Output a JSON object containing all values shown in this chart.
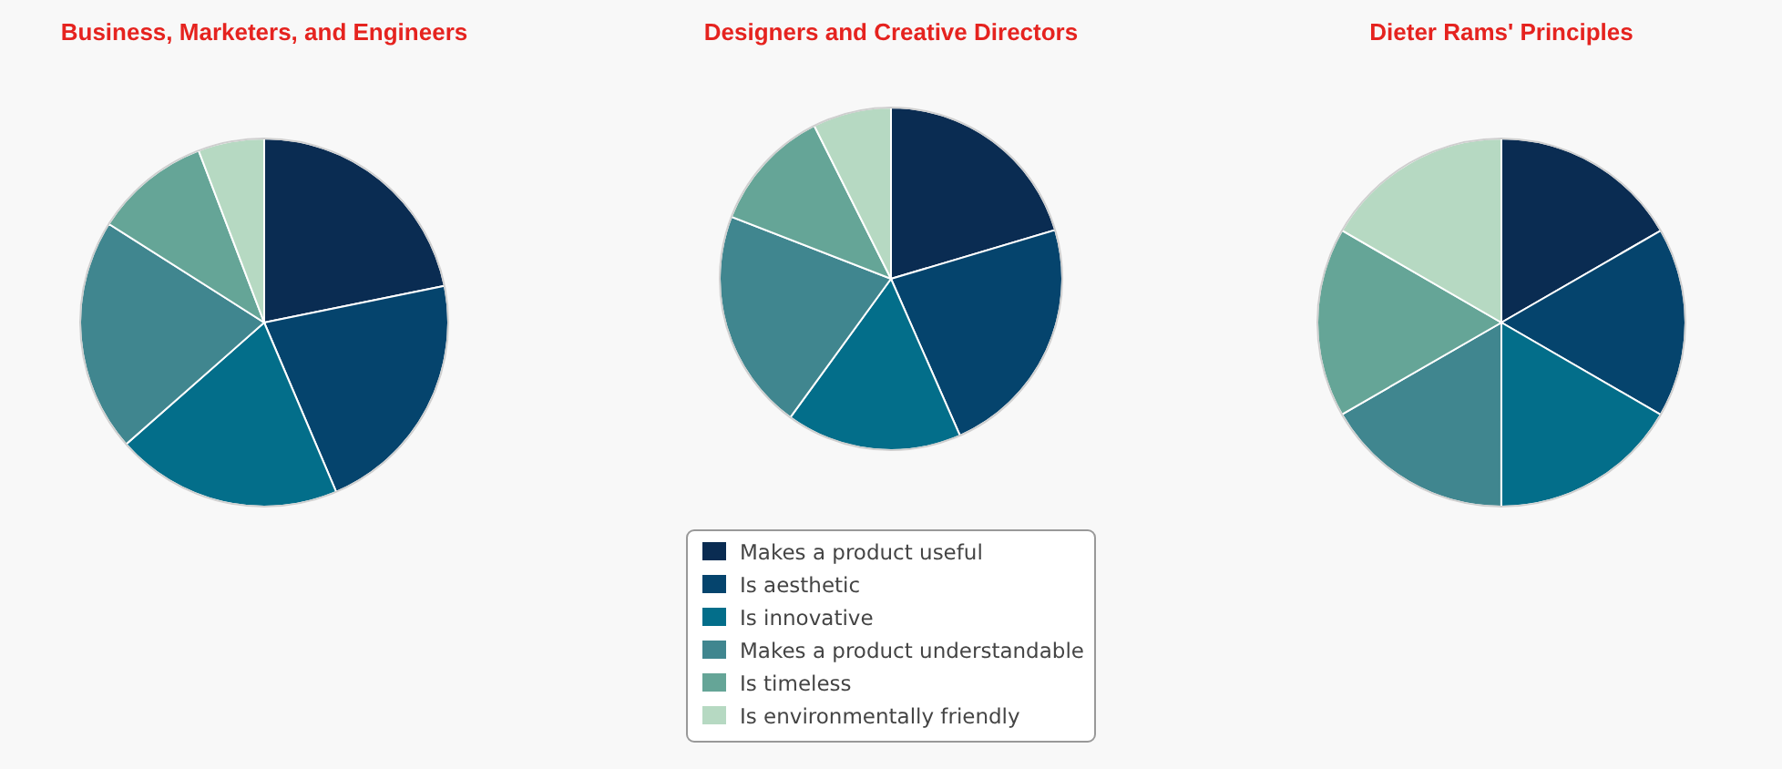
{
  "chart_data": [
    {
      "type": "pie",
      "title": "Business, Marketers, and Engineers",
      "categories": [
        null,
        null,
        null,
        null,
        null,
        null
      ],
      "values": [
        21.8,
        21.8,
        19.9,
        20.5,
        10.2,
        5.8
      ],
      "colors": [
        "#0a2c52",
        "#05446d",
        "#036e8a",
        "#40868f",
        "#65a597",
        "#b6d9c2"
      ]
    },
    {
      "type": "pie",
      "title": "Designers and Creative Directors",
      "categories": [
        "Makes a product useful",
        "Is aesthetic",
        "Is innovative",
        "Makes a product understandable",
        "Is timeless",
        "Is environmentally friendly"
      ],
      "values": [
        20.4,
        23.0,
        16.6,
        20.9,
        11.7,
        7.4
      ],
      "colors": [
        "#0a2c52",
        "#05446d",
        "#036e8a",
        "#40868f",
        "#65a597",
        "#b6d9c2"
      ],
      "legend": "bottom"
    },
    {
      "type": "pie",
      "title": "Dieter Rams' Principles",
      "categories": [
        null,
        null,
        null,
        null,
        null,
        null
      ],
      "values": [
        16.67,
        16.67,
        16.67,
        16.67,
        16.66,
        16.66
      ],
      "colors": [
        "#0a2c52",
        "#05446d",
        "#036e8a",
        "#40868f",
        "#65a597",
        "#b6d9c2"
      ]
    }
  ]
}
